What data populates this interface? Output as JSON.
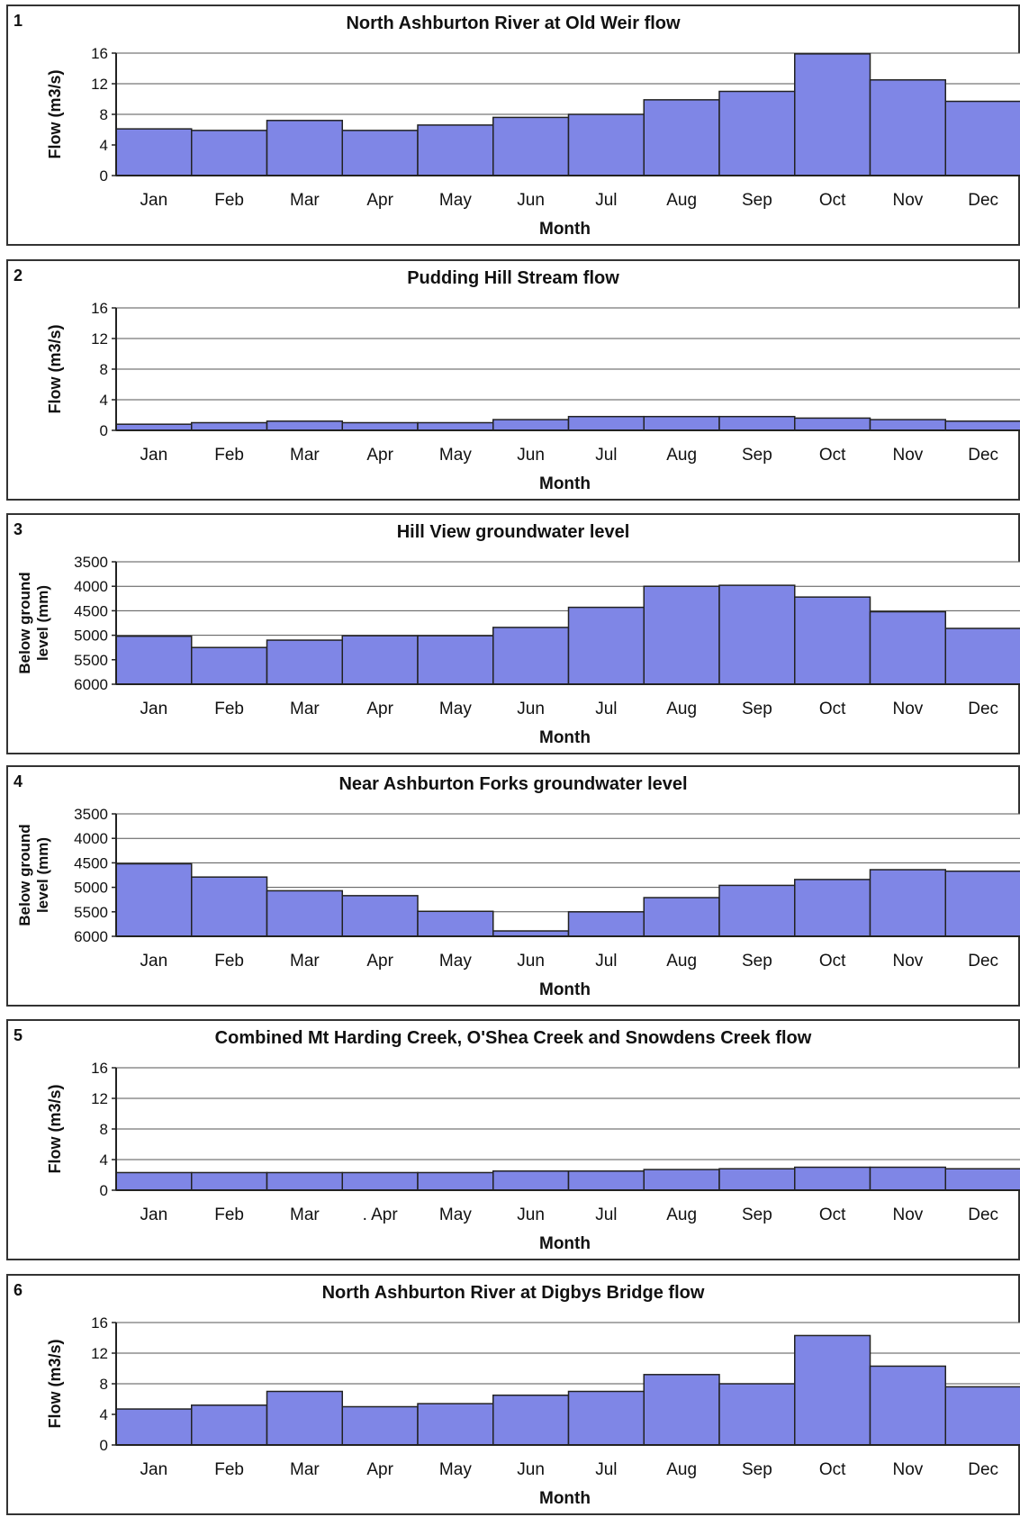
{
  "chart_data": [
    {
      "type": "bar",
      "panel": "1",
      "title": "North Ashburton River at Old Weir flow",
      "xlabel": "Month",
      "ylabel": "Flow (m3/s)",
      "yticks": [
        "0",
        "4",
        "8",
        "12",
        "16"
      ],
      "ylim": [
        0,
        16
      ],
      "inverted": false,
      "categories": [
        "Jan",
        "Feb",
        "Mar",
        "Apr",
        "May",
        "Jun",
        "Jul",
        "Aug",
        "Sep",
        "Oct",
        "Nov",
        "Dec"
      ],
      "values": [
        6.1,
        5.9,
        7.2,
        5.9,
        6.6,
        7.6,
        8.0,
        9.9,
        11.0,
        15.9,
        12.5,
        9.7
      ],
      "grid": true,
      "colors": {
        "bar": "#7f86e6",
        "edge": "#222222"
      }
    },
    {
      "type": "bar",
      "panel": "2",
      "title": "Pudding Hill Stream flow",
      "xlabel": "Month",
      "ylabel": "Flow (m3/s)",
      "yticks": [
        "0",
        "4",
        "8",
        "12",
        "16"
      ],
      "ylim": [
        0,
        16
      ],
      "inverted": false,
      "categories": [
        "Jan",
        "Feb",
        "Mar",
        "Apr",
        "May",
        "Jun",
        "Jul",
        "Aug",
        "Sep",
        "Oct",
        "Nov",
        "Dec"
      ],
      "values": [
        0.8,
        1.0,
        1.2,
        1.0,
        1.0,
        1.4,
        1.8,
        1.8,
        1.8,
        1.6,
        1.4,
        1.2
      ],
      "grid": true,
      "colors": {
        "bar": "#7f86e6",
        "edge": "#222222"
      }
    },
    {
      "type": "bar",
      "panel": "3",
      "title": "Hill View groundwater level",
      "xlabel": "Month",
      "ylabel": "Below ground level (mm)",
      "yticks": [
        "6000",
        "5500",
        "5000",
        "4500",
        "4000",
        "3500"
      ],
      "ylim": [
        3500,
        6000
      ],
      "inverted": true,
      "categories": [
        "Jan",
        "Feb",
        "Mar",
        "Apr",
        "May",
        "Jun",
        "Jul",
        "Aug",
        "Sep",
        "Oct",
        "Nov",
        "Dec"
      ],
      "values": [
        5020,
        5250,
        5100,
        5010,
        5010,
        4840,
        4430,
        4000,
        3980,
        4220,
        4520,
        4860
      ],
      "grid": true,
      "colors": {
        "bar": "#7f86e6",
        "edge": "#222222"
      }
    },
    {
      "type": "bar",
      "panel": "4",
      "title": "Near Ashburton Forks groundwater level",
      "xlabel": "Month",
      "ylabel": "Below ground level (mm)",
      "yticks": [
        "6000",
        "5500",
        "5000",
        "4500",
        "4000",
        "3500"
      ],
      "ylim": [
        3500,
        6000
      ],
      "inverted": true,
      "categories": [
        "Jan",
        "Feb",
        "Mar",
        "Apr",
        "May",
        "Jun",
        "Jul",
        "Aug",
        "Sep",
        "Oct",
        "Nov",
        "Dec"
      ],
      "values": [
        4520,
        4790,
        5070,
        5170,
        5490,
        5890,
        5500,
        5210,
        4960,
        4840,
        4640,
        4670
      ],
      "grid": true,
      "colors": {
        "bar": "#7f86e6",
        "edge": "#222222"
      }
    },
    {
      "type": "bar",
      "panel": "5",
      "title": "Combined Mt Harding Creek, O'Shea Creek and Snowdens Creek flow",
      "xlabel": "Month",
      "ylabel": "Flow (m3/s)",
      "yticks": [
        "0",
        "4",
        "8",
        "12",
        "16"
      ],
      "ylim": [
        0,
        16
      ],
      "inverted": false,
      "categories": [
        "Jan",
        "Feb",
        "Mar",
        ". Apr",
        "May",
        "Jun",
        "Jul",
        "Aug",
        "Sep",
        "Oct",
        "Nov",
        "Dec"
      ],
      "values": [
        2.3,
        2.3,
        2.3,
        2.3,
        2.3,
        2.5,
        2.5,
        2.7,
        2.8,
        3.0,
        3.0,
        2.8
      ],
      "grid": true,
      "colors": {
        "bar": "#7f86e6",
        "edge": "#222222"
      }
    },
    {
      "type": "bar",
      "panel": "6",
      "title": "North Ashburton River at Digbys Bridge flow",
      "xlabel": "Month",
      "ylabel": "Flow (m3/s)",
      "yticks": [
        "0",
        "4",
        "8",
        "12",
        "16"
      ],
      "ylim": [
        0,
        16
      ],
      "inverted": false,
      "categories": [
        "Jan",
        "Feb",
        "Mar",
        "Apr",
        "May",
        "Jun",
        "Jul",
        "Aug",
        "Sep",
        "Oct",
        "Nov",
        "Dec"
      ],
      "values": [
        4.7,
        5.2,
        7.0,
        5.0,
        5.4,
        6.5,
        7.0,
        9.2,
        8.0,
        14.3,
        10.3,
        7.6
      ],
      "grid": true,
      "colors": {
        "bar": "#7f86e6",
        "edge": "#222222"
      }
    }
  ]
}
